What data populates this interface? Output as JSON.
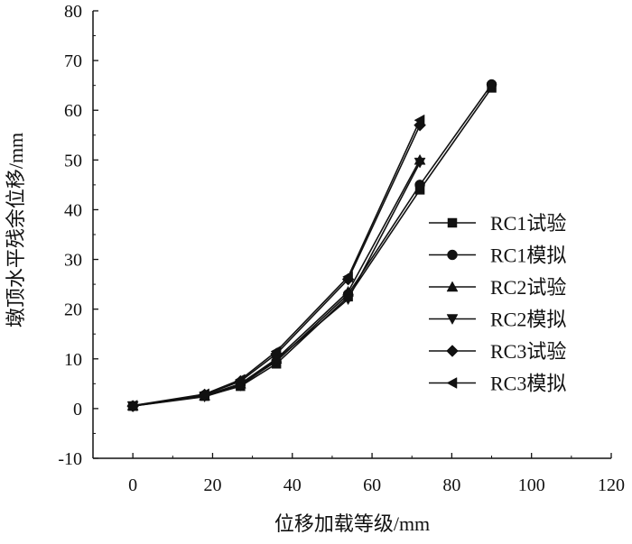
{
  "chart_data": {
    "type": "line",
    "xlabel": "位移加载等级/mm",
    "ylabel": "墩顶水平残余位移/mm",
    "xlim": [
      -10,
      120
    ],
    "ylim": [
      -10,
      80
    ],
    "x_ticks": [
      "0",
      "20",
      "40",
      "60",
      "80",
      "100",
      "120"
    ],
    "y_ticks": [
      "-10",
      "0",
      "10",
      "20",
      "30",
      "40",
      "50",
      "60",
      "70",
      "80"
    ],
    "grid": false,
    "legend_position": "right",
    "line_color": "#111111",
    "series": [
      {
        "name": "RC1试验",
        "marker": "square",
        "x": [
          0,
          18,
          27,
          36,
          54,
          72,
          90
        ],
        "y": [
          0.5,
          2.5,
          4.5,
          9.0,
          22.5,
          44.0,
          64.5
        ]
      },
      {
        "name": "RC1模拟",
        "marker": "circle",
        "x": [
          0,
          18,
          27,
          36,
          54,
          72,
          90
        ],
        "y": [
          0.5,
          2.7,
          4.8,
          9.5,
          23.0,
          45.0,
          65.2
        ]
      },
      {
        "name": "RC2试验",
        "marker": "triangle-up",
        "x": [
          0,
          18,
          27,
          36,
          54,
          72
        ],
        "y": [
          0.6,
          2.6,
          5.0,
          10.0,
          23.5,
          50.0
        ]
      },
      {
        "name": "RC2模拟",
        "marker": "triangle-down",
        "x": [
          0,
          18,
          27,
          36,
          54,
          72
        ],
        "y": [
          0.5,
          2.4,
          4.6,
          9.8,
          22.0,
          49.5
        ]
      },
      {
        "name": "RC3试验",
        "marker": "diamond",
        "x": [
          0,
          18,
          27,
          36,
          54,
          72
        ],
        "y": [
          0.5,
          2.8,
          5.5,
          11.0,
          26.0,
          57.0
        ]
      },
      {
        "name": "RC3模拟",
        "marker": "triangle-left",
        "x": [
          0,
          18,
          27,
          36,
          54,
          72
        ],
        "y": [
          0.6,
          2.9,
          5.8,
          11.5,
          26.5,
          58.0
        ]
      }
    ]
  }
}
